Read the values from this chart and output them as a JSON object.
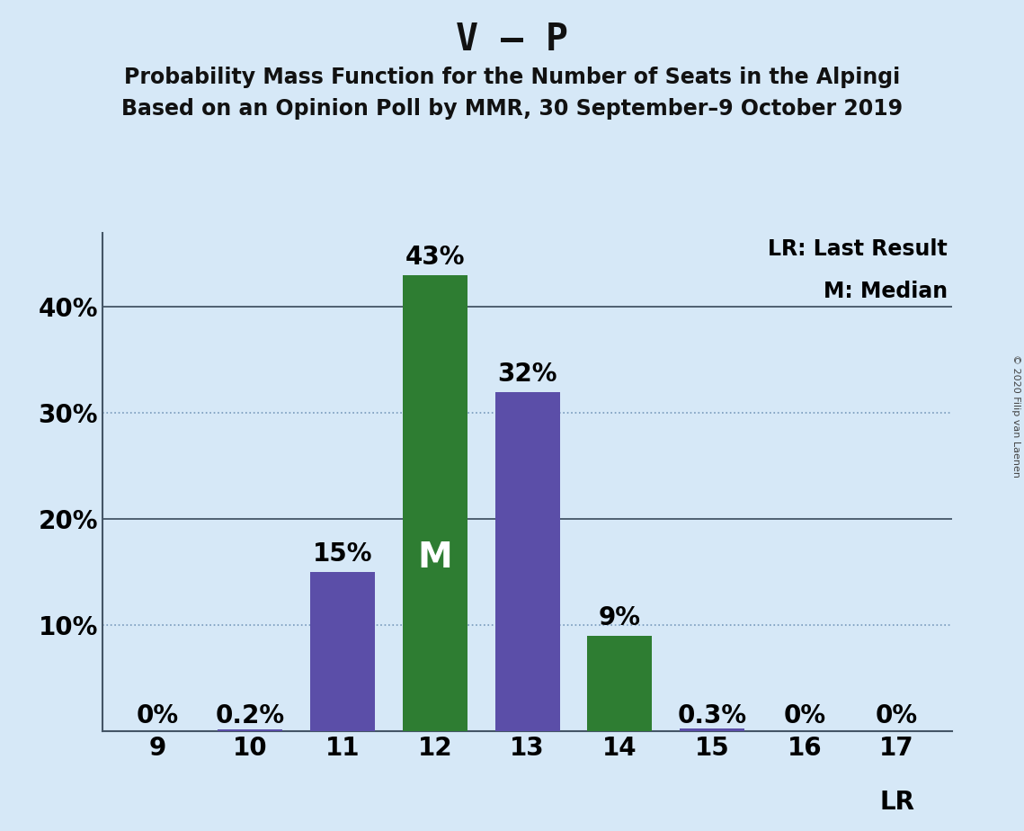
{
  "title": "V – P",
  "subtitle1": "Probability Mass Function for the Number of Seats in the Alpingi",
  "subtitle2": "Based on an Opinion Poll by MMR, 30 September–9 October 2019",
  "copyright": "© 2020 Filip van Laenen",
  "categories": [
    9,
    10,
    11,
    12,
    13,
    14,
    15,
    16,
    17
  ],
  "values": [
    0.0,
    0.2,
    15.0,
    43.0,
    32.0,
    9.0,
    0.3,
    0.0,
    0.0
  ],
  "labels": [
    "0%",
    "0.2%",
    "15%",
    "43%",
    "32%",
    "9%",
    "0.3%",
    "0%",
    "0%"
  ],
  "colors": [
    "#5b4ea8",
    "#5b4ea8",
    "#5b4ea8",
    "#2e7d32",
    "#5b4ea8",
    "#2e7d32",
    "#5b4ea8",
    "#5b4ea8",
    "#5b4ea8"
  ],
  "median_bar_index": 3,
  "median_label": "M",
  "lr_bar_index": 8,
  "lr_label": "LR",
  "legend_lr": "LR: Last Result",
  "legend_m": "M: Median",
  "background_color": "#d6e8f7",
  "ylim_max": 47,
  "ytick_positions": [
    10,
    20,
    30,
    40
  ],
  "ytick_labels": [
    "10%",
    "20%",
    "30%",
    "40%"
  ],
  "dotted_grid": [
    10,
    30
  ],
  "solid_grid": [
    20,
    40
  ],
  "title_fontsize": 30,
  "subtitle_fontsize": 17,
  "label_fontsize": 20,
  "tick_fontsize": 20,
  "legend_fontsize": 17,
  "bar_width": 0.7
}
